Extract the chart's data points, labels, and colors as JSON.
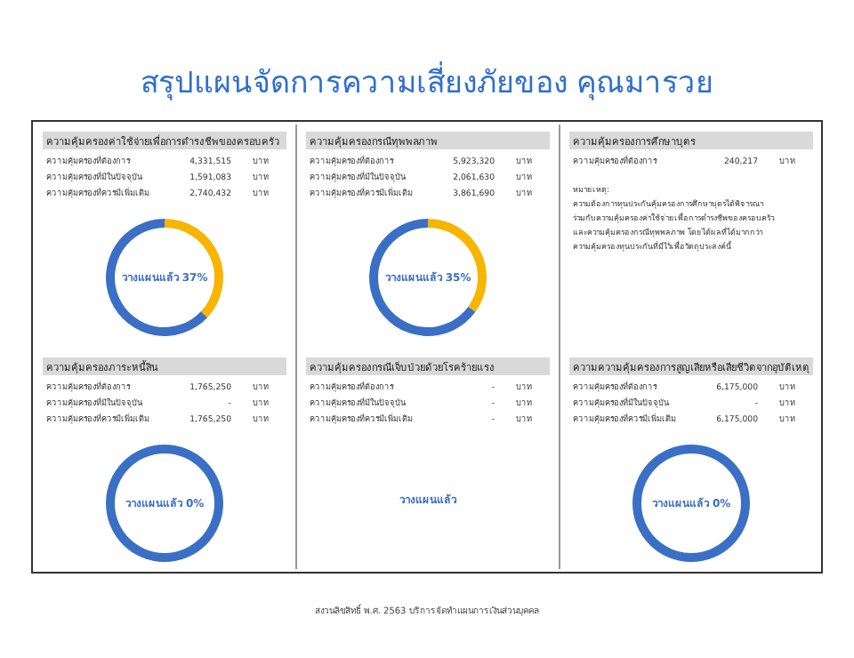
{
  "chart_data": [
    {
      "type": "other",
      "title": "สรุปแผนจัดการความเสี่ยงภัยของ คุณมารวย",
      "annotations": [
        "สงวนลิขสิทธิ์ พ.ศ. 2563 บริการจัดทำแผนการเงินส่วนบุคคล"
      ]
    },
    {
      "type": "other",
      "title": "ความคุ้มครองค่าใช้จ่ายเพื่อการดำรงชีพของครอบครัว",
      "annotations": [
        "ความคุ้มครองที่ต้องการ",
        "4,331,515",
        "บาท",
        "ความคุ้มครองที่มีในปัจจุบัน",
        "1,591,083",
        "บาท",
        "ความคุ้มครองที่ควรมีเพิ่มเติม",
        "2,740,432",
        "บาท"
      ]
    },
    {
      "type": "donut",
      "categories": [
        null,
        null
      ],
      "values": [
        37,
        63
      ],
      "colors": [
        "#f7b500",
        "#3b6fc6"
      ],
      "annotations": [
        "วางแผนแล้ว 37%"
      ]
    },
    {
      "type": "other",
      "title": "ความคุ้มครองกรณีทุพพลภาพ",
      "annotations": [
        "ความคุ้มครองที่ต้องการ",
        "5,923,320",
        "บาท",
        "ความคุ้มครองที่มีในปัจจุบัน",
        "2,061,630",
        "บาท",
        "ความคุ้มครองที่ควรมีเพิ่มเติม",
        "3,861,690",
        "บาท"
      ]
    },
    {
      "type": "donut",
      "categories": [
        null,
        null
      ],
      "values": [
        35,
        65
      ],
      "colors": [
        "#f7b500",
        "#3b6fc6"
      ],
      "annotations": [
        "วางแผนแล้ว 35%"
      ]
    },
    {
      "type": "other",
      "title": "ความคุ้มครองการศึกษาบุตร",
      "annotations": [
        "ความคุ้มครองที่ต้องการ",
        "240,217",
        "บาท"
      ]
    },
    {
      "type": "other",
      "annotations": [
        "หมายเหตุ:",
        "ความต้องการทุนประกันคุ้มครองการศึกษาบุตรได้พิจารณา",
        "ร่วมกับความคุ้มครองค่าใช้จ่ายเพื่อการดำรงชีพของครอบครัว",
        "และความคุ้มครองกรณีทุพพลภาพ โดยได้ผลที่ได้มากกว่า",
        "ความคุ้มครองทุนประกันที่มีไว้เพื่อวัตถุประสงค์นี้"
      ]
    },
    {
      "type": "other",
      "title": "ความคุ้มครองภาระหนี้สิน",
      "annotations": [
        "ความคุ้มครองที่ต้องการ",
        "1,765,250",
        "บาท",
        "ความคุ้มครองที่มีในปัจจุบัน",
        "-",
        "บาท",
        "ความคุ้มครองที่ควรมีเพิ่มเติม",
        "1,765,250",
        "บาท"
      ]
    },
    {
      "type": "donut",
      "categories": [
        null,
        null
      ],
      "values": [
        0,
        100
      ],
      "colors": [
        "#f7b500",
        "#3b6fc6"
      ],
      "annotations": [
        "วางแผนแล้ว 0%"
      ]
    },
    {
      "type": "other",
      "title": "ความคุ้มครองกรณีเจ็บป่วยด้วยโรคร้ายแรง",
      "annotations": [
        "ความคุ้มครองที่ต้องการ",
        "-",
        "บาท",
        "ความคุ้มครองที่มีในปัจจุบัน",
        "-",
        "บาท",
        "ความคุ้มครองที่ควรมีเพิ่มเติม",
        "-",
        "บาท"
      ]
    },
    {
      "type": "other",
      "annotations": [
        "วางแผนแล้ว"
      ]
    },
    {
      "type": "other",
      "title": "ความความคุ้มครองการสูญเสียหรือเสียชีวิตจากอุบัติเหตุ",
      "annotations": [
        "ความคุ้มครองที่ต้องการ",
        "6,175,000",
        "บาท",
        "ความคุ้มครองที่มีในปัจจุบัน",
        "-",
        "บาท",
        "ความคุ้มครองที่ควรมีเพิ่มเติม",
        "6,175,000",
        "บาท"
      ]
    },
    {
      "type": "donut",
      "categories": [
        null,
        null
      ],
      "values": [
        0,
        100
      ],
      "colors": [
        "#f7b500",
        "#3b6fc6"
      ],
      "annotations": [
        "วางแผนแล้ว 0%"
      ]
    }
  ]
}
